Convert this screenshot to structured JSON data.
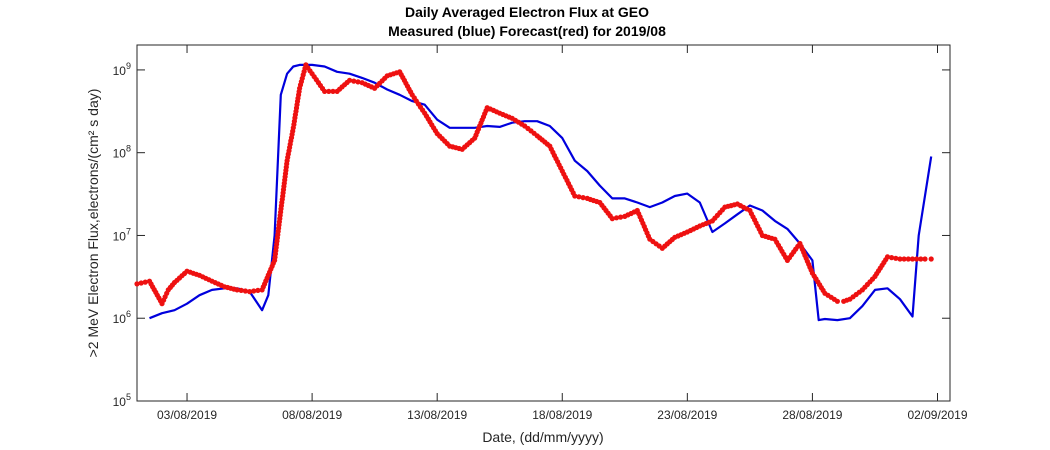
{
  "chart_data": {
    "type": "line",
    "title": "Daily Averaged Electron Flux at GEO",
    "subtitle": "Measured (blue) Forecast(red) for 2019/08",
    "xlabel": "Date, (dd/mm/yyyy)",
    "ylabel": ">2 MeV Electron Flux,electrons/(cm² s day)",
    "y_scale": "log",
    "xlim": [
      "2019-08-01T00:00",
      "2019-09-02T12:00"
    ],
    "ylim": [
      100000,
      2000000000
    ],
    "x_ticks": [
      "2019-08-03",
      "2019-08-08",
      "2019-08-13",
      "2019-08-18",
      "2019-08-23",
      "2019-08-28",
      "2019-09-02"
    ],
    "x_tick_labels": [
      "03/08/2019",
      "08/08/2019",
      "13/08/2019",
      "18/08/2019",
      "23/08/2019",
      "28/08/2019",
      "02/09/2019"
    ],
    "y_ticks": [
      100000,
      1000000,
      10000000,
      100000000,
      1000000000
    ],
    "y_tick_labels": [
      {
        "base": "10",
        "exp": "5"
      },
      {
        "base": "10",
        "exp": "6"
      },
      {
        "base": "10",
        "exp": "7"
      },
      {
        "base": "10",
        "exp": "8"
      },
      {
        "base": "10",
        "exp": "9"
      }
    ],
    "grid": false,
    "series": [
      {
        "color": "#0000dd",
        "style": "line",
        "x": [
          "2019-08-01T12:00",
          "2019-08-02T00:00",
          "2019-08-02T12:00",
          "2019-08-03T00:00",
          "2019-08-03T12:00",
          "2019-08-04T00:00",
          "2019-08-04T12:00",
          "2019-08-05T00:00",
          "2019-08-05T12:00",
          "2019-08-06T00:00",
          "2019-08-06T06:00",
          "2019-08-06T12:00",
          "2019-08-06T18:00",
          "2019-08-07T00:00",
          "2019-08-07T06:00",
          "2019-08-07T12:00",
          "2019-08-07T18:00",
          "2019-08-08T00:00",
          "2019-08-08T12:00",
          "2019-08-09T00:00",
          "2019-08-09T12:00",
          "2019-08-10T00:00",
          "2019-08-10T12:00",
          "2019-08-11T00:00",
          "2019-08-11T12:00",
          "2019-08-12T00:00",
          "2019-08-12T12:00",
          "2019-08-13T00:00",
          "2019-08-13T12:00",
          "2019-08-14T00:00",
          "2019-08-14T12:00",
          "2019-08-15T00:00",
          "2019-08-15T12:00",
          "2019-08-16T00:00",
          "2019-08-16T12:00",
          "2019-08-17T00:00",
          "2019-08-17T12:00",
          "2019-08-18T00:00",
          "2019-08-18T12:00",
          "2019-08-19T00:00",
          "2019-08-19T12:00",
          "2019-08-20T00:00",
          "2019-08-20T12:00",
          "2019-08-21T00:00",
          "2019-08-21T12:00",
          "2019-08-22T00:00",
          "2019-08-22T12:00",
          "2019-08-23T00:00",
          "2019-08-23T12:00",
          "2019-08-24T00:00",
          "2019-08-24T12:00",
          "2019-08-25T00:00",
          "2019-08-25T12:00",
          "2019-08-26T00:00",
          "2019-08-26T12:00",
          "2019-08-27T00:00",
          "2019-08-27T12:00",
          "2019-08-28T00:00",
          "2019-08-28T06:00",
          "2019-08-28T12:00",
          "2019-08-29T00:00",
          "2019-08-29T12:00",
          "2019-08-30T00:00",
          "2019-08-30T12:00",
          "2019-08-31T00:00",
          "2019-08-31T12:00",
          "2019-09-01T00:00",
          "2019-09-01T06:00",
          "2019-09-01T18:00"
        ],
        "y": [
          1000000,
          1150000,
          1250000,
          1500000,
          1900000,
          2200000,
          2300000,
          2300000,
          2100000,
          1250000,
          1900000,
          10000000,
          500000000,
          900000000,
          1100000000,
          1150000000,
          1150000000,
          1150000000,
          1100000000,
          950000000,
          900000000,
          800000000,
          700000000,
          580000000,
          500000000,
          420000000,
          380000000,
          250000000,
          200000000,
          200000000,
          200000000,
          210000000,
          205000000,
          230000000,
          240000000,
          240000000,
          210000000,
          150000000,
          80000000,
          60000000,
          40000000,
          28000000,
          28000000,
          25000000,
          22000000,
          25000000,
          30000000,
          32000000,
          25000000,
          11000000,
          14000000,
          18000000,
          23000000,
          20000000,
          15000000,
          12000000,
          8000000,
          5000000,
          950000,
          980000,
          950000,
          1000000,
          1400000,
          2200000,
          2300000,
          1700000,
          1050000,
          10000000,
          90000000
        ]
      },
      {
        "color": "#ee1111",
        "style": "markers",
        "x": [
          "2019-08-01T00:00",
          "2019-08-01T12:00",
          "2019-08-02T00:00",
          "2019-08-02T06:00",
          "2019-08-02T12:00",
          "2019-08-03T00:00",
          "2019-08-03T12:00",
          "2019-08-04T00:00",
          "2019-08-04T12:00",
          "2019-08-05T00:00",
          "2019-08-05T12:00",
          "2019-08-06T00:00",
          "2019-08-06T12:00",
          "2019-08-07T00:00",
          "2019-08-07T06:00",
          "2019-08-07T12:00",
          "2019-08-07T18:00",
          "2019-08-08T00:00",
          "2019-08-08T12:00",
          "2019-08-09T00:00",
          "2019-08-09T12:00",
          "2019-08-10T00:00",
          "2019-08-10T12:00",
          "2019-08-11T00:00",
          "2019-08-11T12:00",
          "2019-08-12T00:00",
          "2019-08-12T12:00",
          "2019-08-13T00:00",
          "2019-08-13T12:00",
          "2019-08-14T00:00",
          "2019-08-14T12:00",
          "2019-08-15T00:00",
          "2019-08-15T12:00",
          "2019-08-16T00:00",
          "2019-08-16T12:00",
          "2019-08-17T00:00",
          "2019-08-17T12:00",
          "2019-08-18T00:00",
          "2019-08-18T12:00",
          "2019-08-19T00:00",
          "2019-08-19T12:00",
          "2019-08-20T00:00",
          "2019-08-20T12:00",
          "2019-08-21T00:00",
          "2019-08-21T12:00",
          "2019-08-22T00:00",
          "2019-08-22T12:00",
          "2019-08-23T00:00",
          "2019-08-23T12:00",
          "2019-08-24T00:00",
          "2019-08-24T12:00",
          "2019-08-25T00:00",
          "2019-08-25T12:00",
          "2019-08-26T00:00",
          "2019-08-26T12:00",
          "2019-08-27T00:00",
          "2019-08-27T12:00",
          "2019-08-28T00:00",
          "2019-08-28T12:00",
          "2019-08-29T00:00",
          "2019-08-29T06:00",
          "2019-08-29T12:00",
          "2019-08-30T00:00",
          "2019-08-30T12:00",
          "2019-08-31T00:00",
          "2019-08-31T12:00",
          "2019-09-01T00:00",
          "2019-09-01T12:00",
          "2019-09-01T18:00"
        ],
        "y": [
          2600000,
          2800000,
          1500000,
          2200000,
          2700000,
          3700000,
          3300000,
          2800000,
          2400000,
          2200000,
          2100000,
          2200000,
          5000000,
          80000000,
          200000000,
          600000000,
          1150000000,
          900000000,
          550000000,
          550000000,
          750000000,
          700000000,
          600000000,
          850000000,
          950000000,
          500000000,
          300000000,
          170000000,
          120000000,
          110000000,
          150000000,
          350000000,
          300000000,
          260000000,
          210000000,
          160000000,
          120000000,
          60000000,
          30000000,
          28000000,
          25000000,
          16000000,
          17000000,
          20000000,
          9000000,
          7000000,
          9500000,
          11000000,
          13000000,
          15000000,
          22000000,
          24000000,
          20000000,
          10000000,
          9000000,
          5000000,
          8000000,
          3500000,
          2000000,
          1600000,
          1600000,
          1700000,
          2200000,
          3200000,
          5500000,
          5200000,
          5200000,
          5200000,
          5200000
        ]
      }
    ]
  }
}
